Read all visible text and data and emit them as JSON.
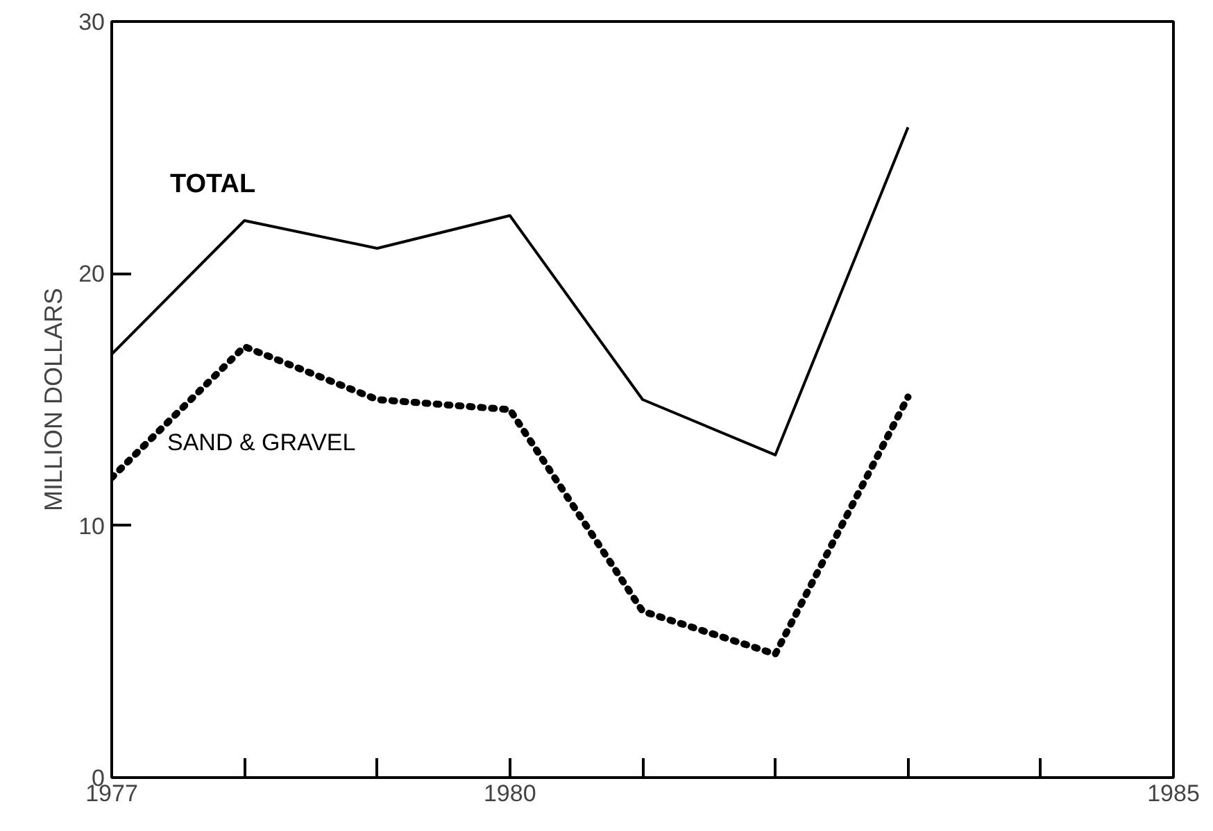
{
  "chart_data": {
    "type": "line",
    "ylabel": "MILLION DOLLARS",
    "x": [
      1977,
      1978,
      1979,
      1980,
      1981,
      1982,
      1983
    ],
    "series": [
      {
        "name": "TOTAL",
        "color": "#000000",
        "line_style": "solid",
        "values": [
          16.8,
          22.1,
          21.0,
          22.3,
          15.0,
          12.8,
          25.8
        ]
      },
      {
        "name": "SAND & GRAVEL",
        "color": "#000000",
        "line_style": "dotted",
        "values": [
          11.9,
          17.1,
          15.0,
          14.6,
          6.6,
          4.9,
          15.1
        ]
      }
    ],
    "xlim": [
      1977,
      1985
    ],
    "ylim": [
      0,
      30
    ],
    "xticks": [
      1977,
      {
        "value": 1978,
        "label": null
      },
      {
        "value": 1979,
        "label": null
      },
      1980,
      {
        "value": 1981,
        "label": null
      },
      {
        "value": 1982,
        "label": null
      },
      {
        "value": 1983,
        "label": null
      },
      {
        "value": 1984,
        "label": null
      },
      1985
    ],
    "yticks": [
      0,
      10,
      20,
      30
    ],
    "grid": false,
    "legend": false,
    "marker": "none"
  }
}
